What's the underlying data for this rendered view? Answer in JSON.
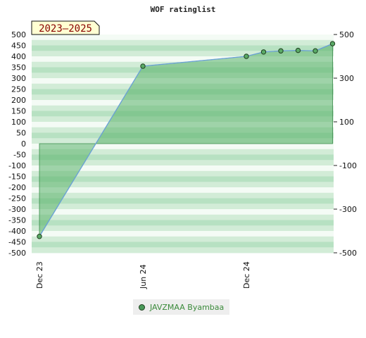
{
  "chart_data": {
    "type": "area",
    "title": "WOF ratinglist",
    "period_label": "2023–2025",
    "ylim": [
      -500,
      500
    ],
    "left_ticks": [
      500,
      450,
      400,
      350,
      300,
      250,
      200,
      150,
      100,
      50,
      0,
      -50,
      -100,
      -150,
      -200,
      -250,
      -300,
      -350,
      -400,
      -450,
      -500
    ],
    "right_ticks": [
      500,
      300,
      100,
      -100,
      -300,
      -500
    ],
    "x_ticks": [
      "Dec 23",
      "Jun 24",
      "Dec 24"
    ],
    "grid": true,
    "legend_position": "bottom-center",
    "series": [
      {
        "name": "JAVZMAA Byambaa",
        "color": "#6aa0d8",
        "fill": "#5ab36a",
        "x": [
          "2023-12",
          "2024-06",
          "2024-12",
          "2025-01",
          "2025-02",
          "2025-03",
          "2025-04",
          "2025-05"
        ],
        "values": [
          -425,
          355,
          400,
          420,
          425,
          427,
          425,
          458
        ]
      }
    ]
  }
}
